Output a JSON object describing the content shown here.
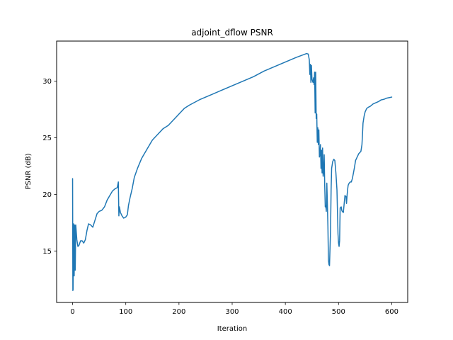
{
  "chart_data": {
    "type": "line",
    "title": "adjoint_dflow PSNR",
    "xlabel": "Iteration",
    "ylabel": "PSNR (dB)",
    "xlim": [
      -30,
      630
    ],
    "ylim": [
      10.45,
      33.55
    ],
    "xticks": [
      0,
      100,
      200,
      300,
      400,
      500,
      600
    ],
    "yticks": [
      15,
      20,
      25,
      30
    ],
    "grid": false,
    "legend": "none",
    "series": [
      {
        "name": "PSNR",
        "color": "#1f77b4",
        "points": [
          [
            0,
            21.4
          ],
          [
            0.5,
            11.5
          ],
          [
            1,
            11.6
          ],
          [
            2,
            17.4
          ],
          [
            3,
            12.8
          ],
          [
            4,
            17.3
          ],
          [
            5,
            13.3
          ],
          [
            6,
            17.3
          ],
          [
            8,
            16.0
          ],
          [
            10,
            15.4
          ],
          [
            12,
            15.5
          ],
          [
            15,
            15.9
          ],
          [
            18,
            15.9
          ],
          [
            21,
            15.7
          ],
          [
            24,
            16.0
          ],
          [
            27,
            16.8
          ],
          [
            30,
            17.4
          ],
          [
            34,
            17.3
          ],
          [
            38,
            17.1
          ],
          [
            42,
            17.7
          ],
          [
            46,
            18.3
          ],
          [
            50,
            18.5
          ],
          [
            55,
            18.6
          ],
          [
            60,
            18.9
          ],
          [
            65,
            19.5
          ],
          [
            70,
            19.9
          ],
          [
            75,
            20.3
          ],
          [
            80,
            20.5
          ],
          [
            84,
            20.6
          ],
          [
            86,
            21.1
          ],
          [
            87,
            18.1
          ],
          [
            88,
            18.9
          ],
          [
            90,
            18.4
          ],
          [
            93,
            18.1
          ],
          [
            96,
            17.9
          ],
          [
            100,
            18.0
          ],
          [
            103,
            18.2
          ],
          [
            105,
            19.0
          ],
          [
            108,
            19.7
          ],
          [
            112,
            20.5
          ],
          [
            116,
            21.5
          ],
          [
            122,
            22.3
          ],
          [
            130,
            23.2
          ],
          [
            140,
            24.0
          ],
          [
            150,
            24.8
          ],
          [
            160,
            25.3
          ],
          [
            170,
            25.8
          ],
          [
            180,
            26.1
          ],
          [
            190,
            26.6
          ],
          [
            200,
            27.1
          ],
          [
            210,
            27.6
          ],
          [
            220,
            27.9
          ],
          [
            240,
            28.4
          ],
          [
            260,
            28.8
          ],
          [
            280,
            29.2
          ],
          [
            300,
            29.6
          ],
          [
            320,
            30.0
          ],
          [
            340,
            30.4
          ],
          [
            360,
            30.9
          ],
          [
            380,
            31.3
          ],
          [
            400,
            31.7
          ],
          [
            420,
            32.1
          ],
          [
            440,
            32.45
          ],
          [
            443,
            32.4
          ],
          [
            445,
            31.9
          ],
          [
            446,
            30.6
          ],
          [
            447,
            31.5
          ],
          [
            448,
            29.9
          ],
          [
            449,
            31.4
          ],
          [
            450,
            30.2
          ],
          [
            451,
            30.0
          ],
          [
            452,
            29.9
          ],
          [
            453,
            30.3
          ],
          [
            454,
            29.7
          ],
          [
            455,
            30.8
          ],
          [
            456,
            27.2
          ],
          [
            457,
            30.8
          ],
          [
            458,
            26.7
          ],
          [
            459,
            27.1
          ],
          [
            460,
            24.6
          ],
          [
            461,
            25.9
          ],
          [
            462,
            24.4
          ],
          [
            463,
            25.7
          ],
          [
            464,
            23.3
          ],
          [
            465,
            23.5
          ],
          [
            466,
            24.4
          ],
          [
            467,
            22.3
          ],
          [
            468,
            23.9
          ],
          [
            469,
            21.9
          ],
          [
            470,
            24.1
          ],
          [
            471,
            21.6
          ],
          [
            472,
            22.0
          ],
          [
            473,
            23.5
          ],
          [
            474,
            20.8
          ],
          [
            475,
            18.9
          ],
          [
            476,
            19.0
          ],
          [
            477,
            18.5
          ],
          [
            478,
            21.0
          ],
          [
            479,
            19.2
          ],
          [
            480,
            17.2
          ],
          [
            481,
            14.2
          ],
          [
            482,
            13.8
          ],
          [
            483,
            13.7
          ],
          [
            485,
            16.9
          ],
          [
            486,
            20.4
          ],
          [
            487,
            22.3
          ],
          [
            489,
            22.9
          ],
          [
            491,
            23.1
          ],
          [
            493,
            23.0
          ],
          [
            495,
            21.9
          ],
          [
            497,
            20.4
          ],
          [
            498,
            18.4
          ],
          [
            499,
            16.5
          ],
          [
            500,
            15.7
          ],
          [
            501,
            15.4
          ],
          [
            502,
            15.9
          ],
          [
            503,
            18.8
          ],
          [
            505,
            18.9
          ],
          [
            506,
            18.6
          ],
          [
            507,
            18.5
          ],
          [
            509,
            18.4
          ],
          [
            511,
            19.4
          ],
          [
            512,
            19.9
          ],
          [
            514,
            19.8
          ],
          [
            515,
            19.2
          ],
          [
            516,
            19.9
          ],
          [
            517,
            20.4
          ],
          [
            518,
            20.8
          ],
          [
            520,
            21.0
          ],
          [
            522,
            21.1
          ],
          [
            524,
            21.1
          ],
          [
            526,
            21.4
          ],
          [
            528,
            21.9
          ],
          [
            530,
            22.4
          ],
          [
            532,
            23.0
          ],
          [
            535,
            23.3
          ],
          [
            538,
            23.6
          ],
          [
            542,
            23.8
          ],
          [
            544,
            24.4
          ],
          [
            545,
            25.3
          ],
          [
            546,
            26.3
          ],
          [
            548,
            26.9
          ],
          [
            550,
            27.3
          ],
          [
            553,
            27.6
          ],
          [
            556,
            27.7
          ],
          [
            560,
            27.8
          ],
          [
            565,
            28.0
          ],
          [
            570,
            28.1
          ],
          [
            575,
            28.2
          ],
          [
            580,
            28.35
          ],
          [
            585,
            28.4
          ],
          [
            590,
            28.5
          ],
          [
            595,
            28.55
          ],
          [
            600,
            28.6
          ]
        ]
      }
    ]
  }
}
